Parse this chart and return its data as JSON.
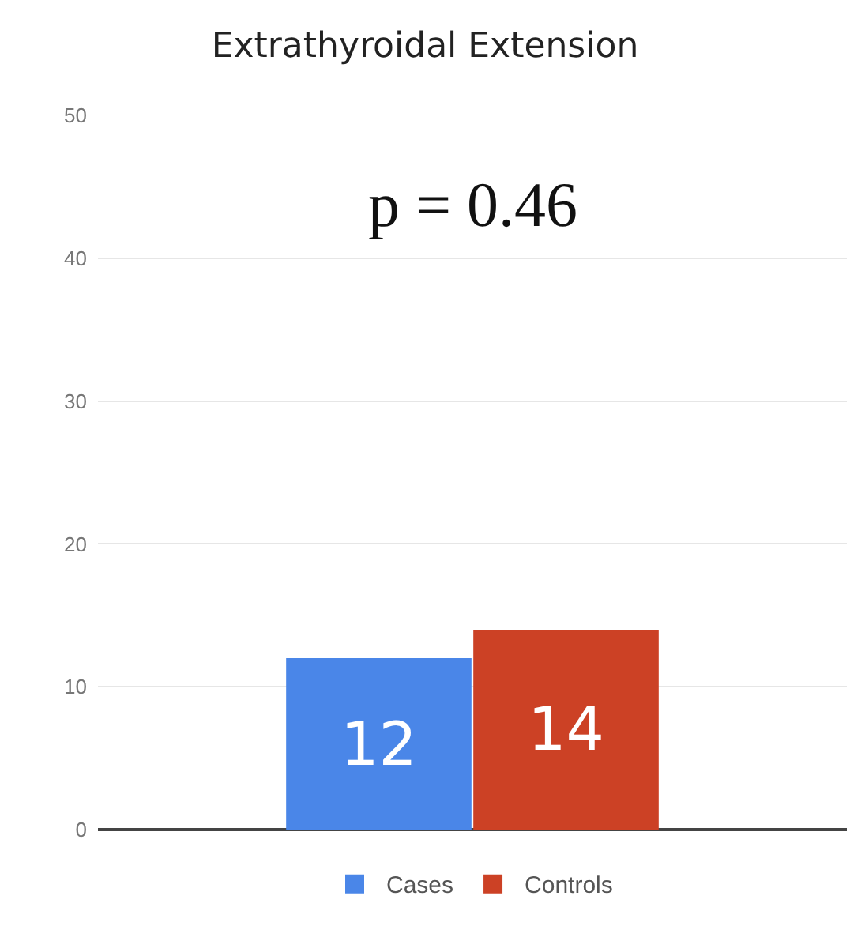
{
  "chart_data": {
    "type": "bar",
    "title": "Extrathyroidal Extension",
    "categories": [
      null
    ],
    "series": [
      {
        "name": "Cases",
        "color": "#4a86e8",
        "values": [
          12
        ]
      },
      {
        "name": "Controls",
        "color": "#cc4125",
        "values": [
          14
        ]
      }
    ],
    "ylim": [
      0,
      50
    ],
    "yticks": [
      0,
      10,
      20,
      30,
      40,
      50
    ],
    "grid": "y",
    "legend": "bottom",
    "data_labels": true,
    "annotations": [
      "p = 0.46"
    ]
  }
}
